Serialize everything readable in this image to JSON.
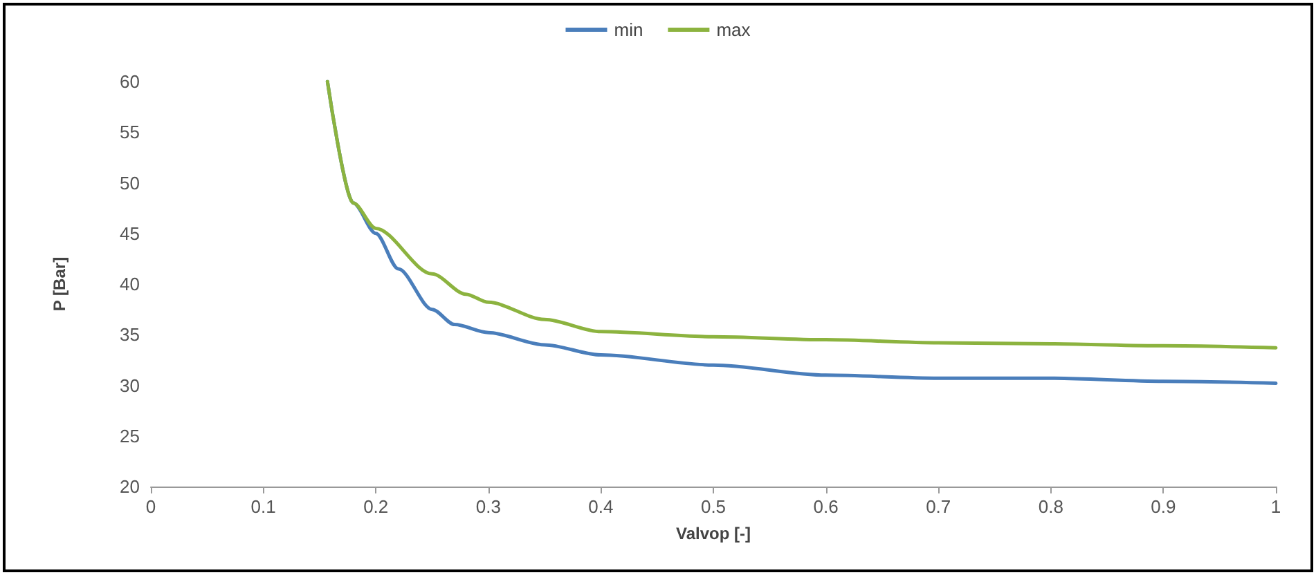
{
  "chart_data": {
    "type": "line",
    "xlabel": "Valvop [-]",
    "ylabel": "P [Bar]",
    "xlim": [
      0,
      1
    ],
    "xticks": [
      0,
      0.1,
      0.2,
      0.3,
      0.4,
      0.5,
      0.6,
      0.7,
      0.8,
      0.9,
      1
    ],
    "ylim": [
      20,
      60
    ],
    "yticks": [
      20,
      25,
      30,
      35,
      40,
      45,
      50,
      55,
      60
    ],
    "grid": false,
    "legend": "top",
    "marker": "none",
    "line_style": "solid",
    "series": [
      {
        "name": "min",
        "color": "#4a7ebb",
        "x": [
          0.157,
          0.18,
          0.2,
          0.22,
          0.25,
          0.27,
          0.3,
          0.35,
          0.4,
          0.5,
          0.6,
          0.7,
          0.8,
          0.9,
          1
        ],
        "values": [
          60,
          48,
          45,
          41.5,
          37.5,
          36,
          35.2,
          34,
          33,
          32,
          31,
          30.7,
          30.7,
          30.4,
          30.2
        ]
      },
      {
        "name": "max",
        "color": "#8cb33f",
        "x": [
          0.157,
          0.18,
          0.2,
          0.25,
          0.28,
          0.3,
          0.35,
          0.4,
          0.5,
          0.6,
          0.7,
          0.8,
          0.9,
          1
        ],
        "values": [
          60,
          48,
          45.5,
          41,
          39,
          38.2,
          36.5,
          35.3,
          34.8,
          34.5,
          34.2,
          34.1,
          33.9,
          33.7
        ]
      }
    ]
  }
}
